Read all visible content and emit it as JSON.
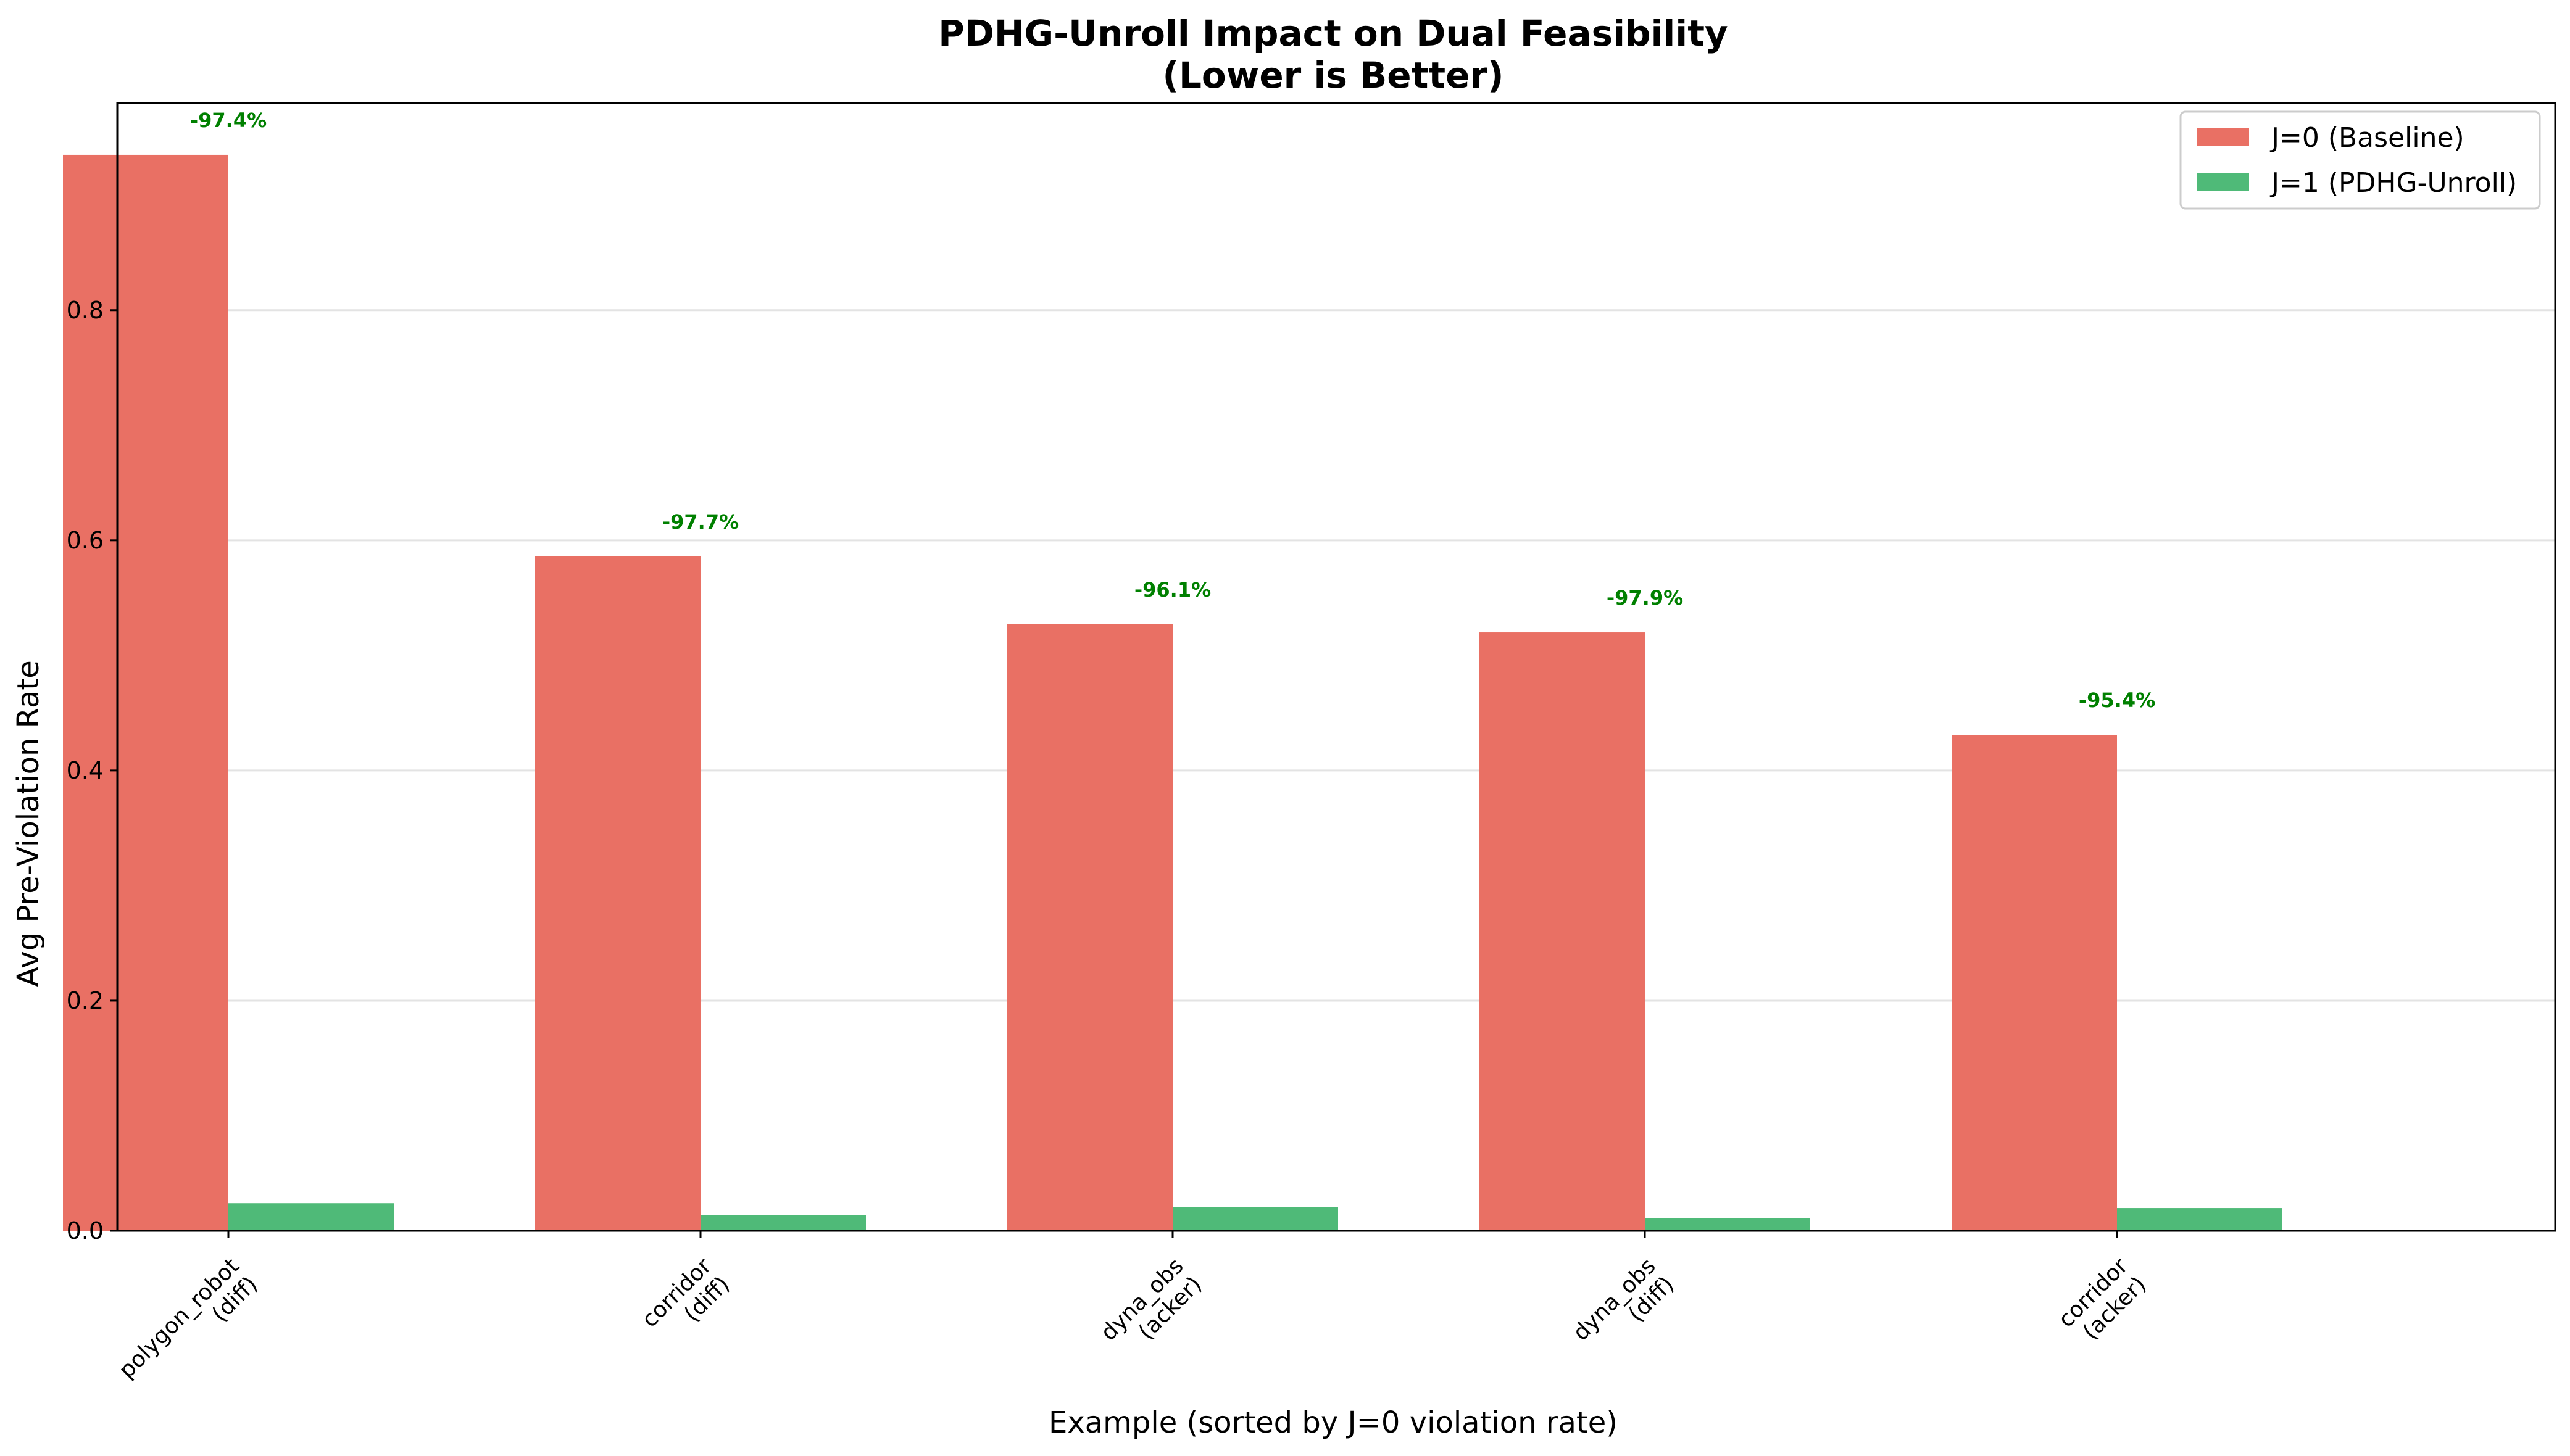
{
  "chart_data": {
    "type": "bar",
    "title_lines": [
      "PDHG-Unroll Impact on Dual Feasibility",
      "(Lower is Better)"
    ],
    "xlabel": "Example (sorted by J=0 violation rate)",
    "ylabel": "Avg Pre-Violation Rate",
    "categories": [
      [
        "polygon_robot",
        "(diff)"
      ],
      [
        "corridor",
        "(diff)"
      ],
      [
        "dyna_obs",
        "(acker)"
      ],
      [
        "dyna_obs",
        "(diff)"
      ],
      [
        "corridor",
        "(acker)"
      ]
    ],
    "series": [
      {
        "name": "J=0 (Baseline)",
        "color": "#e97064",
        "values": [
          0.935,
          0.586,
          0.527,
          0.52,
          0.431
        ]
      },
      {
        "name": "J=1 (PDHG-Unroll)",
        "color": "#4fba78",
        "values": [
          0.024,
          0.0135,
          0.0205,
          0.011,
          0.0198
        ]
      }
    ],
    "annotations": [
      "-97.4%",
      "-97.7%",
      "-96.1%",
      "-97.9%",
      "-95.4%"
    ],
    "annotation_color": "#008000",
    "ylim": [
      0,
      0.98
    ],
    "yticks": [
      "0.0",
      "0.2",
      "0.4",
      "0.6",
      "0.8"
    ],
    "ytick_values": [
      0,
      0.2,
      0.4,
      0.6,
      0.8
    ],
    "grid": "horizontal",
    "legend_position": "top-right"
  }
}
